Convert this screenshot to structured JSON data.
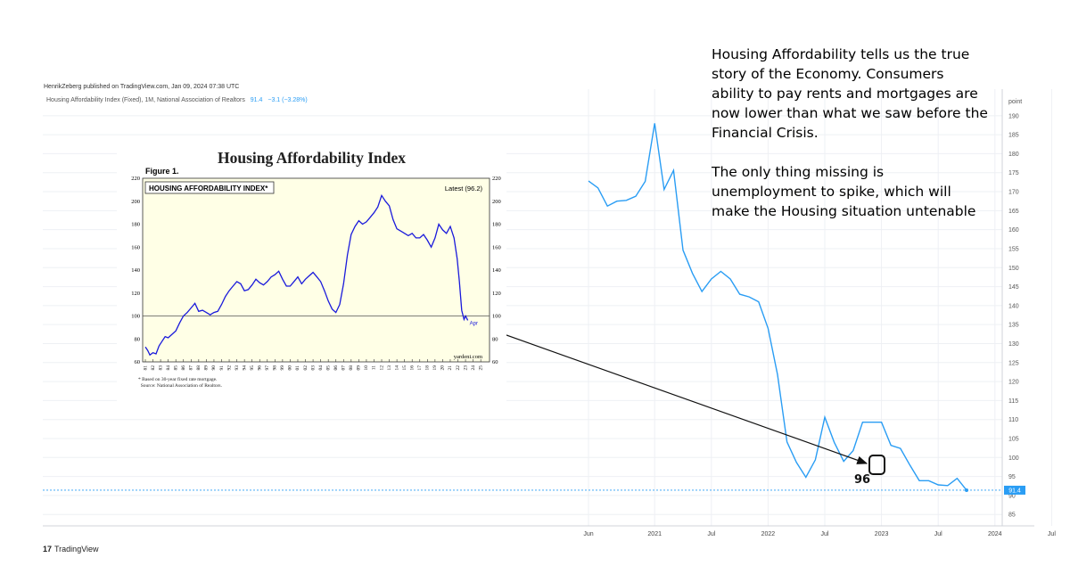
{
  "caption": {
    "paragraph_1": "Housing Affordability tells us the true story of the Economy. Consumers ability to pay rents and mortgages are now lower than what we saw before the Financial Crisis.",
    "paragraph_2": "The only thing missing is unemployment to spike, which will make the Housing situation untenable"
  },
  "header": {
    "publisher": "HenrikZeberg published on TradingView.com, Jan 09, 2024 07:38 UTC",
    "symbol": "Housing Affordability Index (Fixed), 1M, National Association of Realtors",
    "last_value": "91.4",
    "change": "−3.1 (−3.28%)"
  },
  "footer": {
    "brand": "TradingView",
    "logo": "17"
  },
  "callout": {
    "label": "96"
  },
  "colors": {
    "tv_line": "#2a9df4",
    "inset_line": "#1a1adb",
    "inset_bg": "#ffffe6",
    "price_tag": "#2a9df4"
  },
  "chart_data": [
    {
      "type": "line",
      "title": "",
      "series": [
        {
          "name": "",
          "values": [
            172.8,
            171.0,
            166.2,
            167.5,
            167.7,
            168.8,
            172.7,
            188.0,
            170.6,
            175.6,
            154.6,
            148.5,
            143.7,
            147.0,
            149.0,
            147.0,
            143.0,
            142.3,
            141.0,
            134.0,
            121.8,
            104.1,
            98.7,
            94.8,
            99.4,
            110.6,
            104.0,
            99.0,
            101.8,
            109.3,
            109.3,
            109.3,
            103.2,
            102.4,
            98.0,
            93.9,
            93.9,
            92.8,
            92.6,
            94.5,
            91.4
          ]
        }
      ],
      "x_start": "2020-06",
      "x_ticks": [
        "Jun",
        "2021",
        "Jul",
        "2022",
        "Jul",
        "2023",
        "Jul",
        "2024",
        "Jul"
      ],
      "y_axis_label": "point",
      "y_ticks": [
        85,
        90,
        95,
        100,
        105,
        110,
        115,
        120,
        125,
        130,
        135,
        140,
        145,
        150,
        155,
        160,
        165,
        170,
        175,
        180,
        185,
        190
      ],
      "ylim": [
        82,
        197
      ],
      "last_value_label": "91.4",
      "grid": true
    },
    {
      "type": "line",
      "title": "Housing Affordability Index",
      "figure_label": "Figure 1.",
      "panel_label": "HOUSING AFFORDABILITY INDEX*",
      "latest_label": "Latest (96.2)",
      "end_label": "Apr",
      "source": "yardeni.com",
      "footnote_1": "Based on 30-year fixed rate mortgage.",
      "footnote_2": "Source: National Association of Realtors.",
      "footnote_mark": "*",
      "y_ticks": [
        60,
        80,
        100,
        120,
        140,
        160,
        180,
        200,
        220
      ],
      "ylim": [
        60,
        220
      ],
      "reference_line": 100,
      "x_tick_labels": [
        "81",
        "82",
        "83",
        "84",
        "85",
        "86",
        "87",
        "88",
        "89",
        "90",
        "91",
        "92",
        "93",
        "94",
        "95",
        "96",
        "97",
        "98",
        "99",
        "00",
        "01",
        "02",
        "03",
        "04",
        "05",
        "06",
        "07",
        "08",
        "09",
        "10",
        "11",
        "12",
        "13",
        "14",
        "15",
        "16",
        "17",
        "18",
        "19",
        "20",
        "21",
        "22",
        "23",
        "24",
        "25"
      ],
      "x": [
        1981.0,
        1981.3,
        1981.6,
        1982.0,
        1982.4,
        1982.8,
        1983.2,
        1983.6,
        1984.0,
        1984.5,
        1985.0,
        1985.5,
        1986.0,
        1986.5,
        1987.0,
        1987.5,
        1988.0,
        1988.5,
        1989.0,
        1989.5,
        1990.0,
        1990.5,
        1991.0,
        1991.5,
        1992.0,
        1992.5,
        1993.0,
        1993.5,
        1994.0,
        1994.5,
        1995.0,
        1995.5,
        1996.0,
        1996.5,
        1997.0,
        1997.5,
        1998.0,
        1998.5,
        1999.0,
        1999.5,
        2000.0,
        2000.5,
        2001.0,
        2001.5,
        2002.0,
        2002.5,
        2003.0,
        2003.5,
        2004.0,
        2004.5,
        2005.0,
        2005.5,
        2006.0,
        2006.5,
        2007.0,
        2007.5,
        2008.0,
        2008.5,
        2009.0,
        2009.5,
        2010.0,
        2010.5,
        2011.0,
        2011.5,
        2012.0,
        2012.5,
        2013.0,
        2013.5,
        2014.0,
        2014.5,
        2015.0,
        2015.5,
        2016.0,
        2016.5,
        2017.0,
        2017.5,
        2018.0,
        2018.5,
        2019.0,
        2019.5,
        2020.0,
        2020.5,
        2021.0,
        2021.5,
        2021.9,
        2022.2,
        2022.5,
        2022.8,
        2023.0,
        2023.3
      ],
      "values": [
        73,
        70,
        66,
        68,
        67,
        74,
        78,
        82,
        81,
        84,
        87,
        94,
        100,
        103,
        107,
        111,
        104,
        105,
        103,
        101,
        103,
        104,
        110,
        117,
        122,
        126,
        130,
        128,
        122,
        123,
        127,
        132,
        129,
        127,
        130,
        134,
        136,
        139,
        132,
        126,
        126,
        130,
        134,
        128,
        132,
        135,
        138,
        134,
        130,
        122,
        113,
        106,
        103,
        110,
        128,
        153,
        171,
        178,
        183,
        180,
        182,
        186,
        190,
        195,
        205,
        200,
        196,
        184,
        176,
        174,
        172,
        170,
        172,
        168,
        168,
        171,
        166,
        160,
        168,
        180,
        175,
        172,
        178,
        168,
        150,
        130,
        105,
        97,
        100,
        96.2
      ]
    }
  ]
}
